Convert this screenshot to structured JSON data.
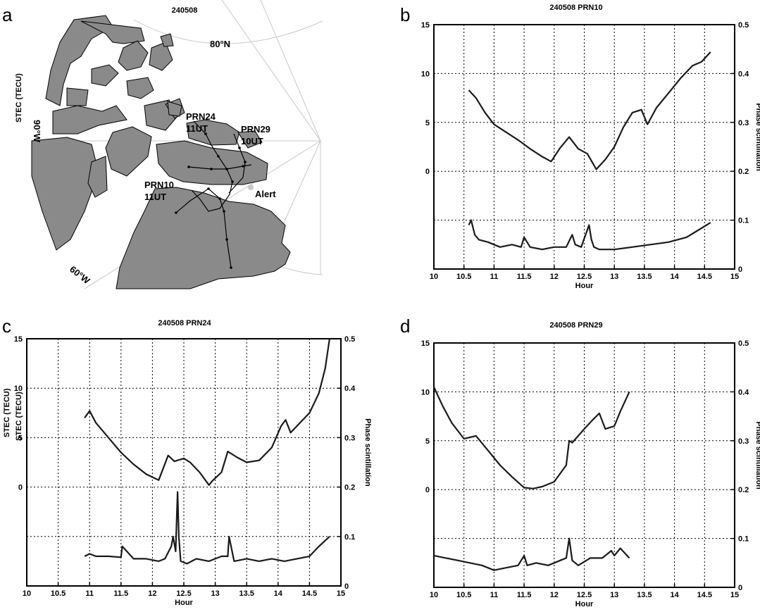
{
  "panel_a": {
    "label": "a",
    "title": "240508",
    "lat_label": "80°N",
    "lon_label_90": "90°W",
    "lon_label_60": "60°W",
    "station": "Alert",
    "tracks": [
      {
        "name": "PRN24",
        "time": "11UT"
      },
      {
        "name": "PRN29",
        "time": "10UT"
      },
      {
        "name": "PRN10",
        "time": "11UT"
      }
    ]
  },
  "chart_data": [
    {
      "panel": "b",
      "type": "line",
      "title": "240508 PRN10",
      "xlabel": "Hour",
      "ylabel_left": "STEC (TECU)",
      "ylabel_right": "Phase scintillation",
      "xlim": [
        10,
        15
      ],
      "xticks": [
        "10",
        "10.5",
        "11",
        "11.5",
        "12",
        "12.5",
        "13",
        "13.5",
        "14",
        "14.5",
        "15"
      ],
      "left_ticks": [
        "15",
        "10",
        "5",
        "0"
      ],
      "right_ticks": [
        "0.5",
        "0.4",
        "0.3",
        "0.2",
        "0.1",
        "0"
      ],
      "grid": true,
      "stec": {
        "x": [
          10.58,
          10.7,
          10.85,
          11,
          11.2,
          11.4,
          11.6,
          11.8,
          11.95,
          12.1,
          12.25,
          12.4,
          12.55,
          12.7,
          12.85,
          13,
          13.15,
          13.3,
          13.45,
          13.55,
          13.7,
          13.9,
          14.1,
          14.3,
          14.45,
          14.6
        ],
        "y": [
          8.3,
          7.5,
          6,
          4.8,
          4,
          3.2,
          2.3,
          1.5,
          1,
          2.4,
          3.5,
          2.3,
          1.8,
          0.2,
          1.2,
          2.5,
          4.5,
          6,
          6.3,
          4.8,
          6.5,
          8,
          9.5,
          10.8,
          11.2,
          12.2
        ]
      },
      "scint": {
        "x": [
          10.58,
          10.62,
          10.68,
          10.75,
          10.9,
          11.1,
          11.3,
          11.45,
          11.5,
          11.6,
          11.8,
          12,
          12.2,
          12.3,
          12.35,
          12.45,
          12.58,
          12.62,
          12.66,
          12.75,
          13,
          13.3,
          13.6,
          13.9,
          14.2,
          14.4,
          14.6
        ],
        "y": [
          0.09,
          0.1,
          0.07,
          0.06,
          0.055,
          0.045,
          0.05,
          0.045,
          0.065,
          0.045,
          0.04,
          0.045,
          0.045,
          0.07,
          0.05,
          0.045,
          0.09,
          0.06,
          0.045,
          0.04,
          0.04,
          0.045,
          0.05,
          0.055,
          0.065,
          0.08,
          0.095
        ]
      }
    },
    {
      "panel": "c",
      "type": "line",
      "title": "240508 PRN24",
      "xlabel": "Hour",
      "ylabel_left": "STEC (TECU)",
      "ylabel_right": "Phase scintillation",
      "xlim": [
        10,
        15
      ],
      "xticks": [
        "10",
        "10.5",
        "11",
        "11.5",
        "12",
        "12.5",
        "13",
        "13.5",
        "14",
        "14.5",
        "15"
      ],
      "left_ticks": [
        "15",
        "10",
        "5",
        "0"
      ],
      "right_ticks": [
        "0.5",
        "0.4",
        "0.3",
        "0.2",
        "0.1",
        "0"
      ],
      "grid": true,
      "stec": {
        "x": [
          10.92,
          11,
          11.1,
          11.3,
          11.5,
          11.7,
          11.9,
          12.1,
          12.25,
          12.35,
          12.5,
          12.6,
          12.75,
          12.9,
          12.95,
          13.1,
          13.2,
          13.35,
          13.5,
          13.7,
          13.9,
          14.05,
          14.12,
          14.2,
          14.35,
          14.5,
          14.65,
          14.75,
          14.82
        ],
        "y": [
          7,
          7.7,
          6.5,
          5,
          3.5,
          2.3,
          1.3,
          0.7,
          3.2,
          2.6,
          2.9,
          2.5,
          1.5,
          0.2,
          0.6,
          1.5,
          3.6,
          3,
          2.5,
          2.7,
          4,
          6.2,
          6.8,
          5.5,
          6.5,
          7.5,
          9.5,
          12,
          15
        ]
      },
      "scint": {
        "x": [
          10.92,
          11,
          11.1,
          11.3,
          11.5,
          11.52,
          11.7,
          11.9,
          12.1,
          12.2,
          12.3,
          12.33,
          12.37,
          12.4,
          12.42,
          12.45,
          12.55,
          12.7,
          12.9,
          13.1,
          13.2,
          13.22,
          13.3,
          13.5,
          13.7,
          13.9,
          14.1,
          14.3,
          14.5,
          14.65,
          14.82
        ],
        "y": [
          0.06,
          0.065,
          0.06,
          0.06,
          0.058,
          0.08,
          0.055,
          0.055,
          0.05,
          0.055,
          0.08,
          0.1,
          0.07,
          0.19,
          0.1,
          0.05,
          0.045,
          0.055,
          0.05,
          0.06,
          0.06,
          0.1,
          0.05,
          0.055,
          0.05,
          0.055,
          0.05,
          0.055,
          0.06,
          0.08,
          0.1
        ]
      }
    },
    {
      "panel": "d",
      "type": "line",
      "title": "240508 PRN29",
      "xlabel": "Hour",
      "ylabel_left": "STEC (TECU)",
      "ylabel_right": "Phase scintillation",
      "xlim": [
        10,
        15
      ],
      "xticks": [
        "10",
        "10.5",
        "11",
        "11.5",
        "12",
        "12.5",
        "13",
        "13.5",
        "14",
        "14.5",
        "15"
      ],
      "left_ticks": [
        "15",
        "10",
        "5",
        "0"
      ],
      "right_ticks": [
        "0.5",
        "0.4",
        "0.3",
        "0.2",
        "0.1",
        "0"
      ],
      "grid": true,
      "stec": {
        "x": [
          10,
          10.15,
          10.3,
          10.5,
          10.7,
          10.9,
          11.1,
          11.3,
          11.5,
          11.65,
          11.8,
          12,
          12.2,
          12.25,
          12.3,
          12.5,
          12.65,
          12.75,
          12.85,
          13,
          13.1,
          13.25
        ],
        "y": [
          10.5,
          8.5,
          6.8,
          5.2,
          5.5,
          4,
          2.5,
          1.3,
          0.2,
          0.1,
          0.3,
          0.8,
          2.5,
          5,
          4.8,
          6.2,
          7.2,
          7.8,
          6.2,
          6.5,
          8,
          10
        ]
      },
      "scint": {
        "x": [
          10,
          10.2,
          10.4,
          10.6,
          10.8,
          11,
          11.2,
          11.4,
          11.5,
          11.55,
          11.7,
          11.9,
          12.1,
          12.2,
          12.25,
          12.3,
          12.4,
          12.6,
          12.8,
          12.95,
          13,
          13.1,
          13.25
        ],
        "y": [
          0.065,
          0.06,
          0.055,
          0.05,
          0.045,
          0.035,
          0.04,
          0.045,
          0.065,
          0.045,
          0.05,
          0.045,
          0.055,
          0.06,
          0.1,
          0.055,
          0.045,
          0.06,
          0.06,
          0.075,
          0.065,
          0.08,
          0.06
        ]
      }
    }
  ]
}
